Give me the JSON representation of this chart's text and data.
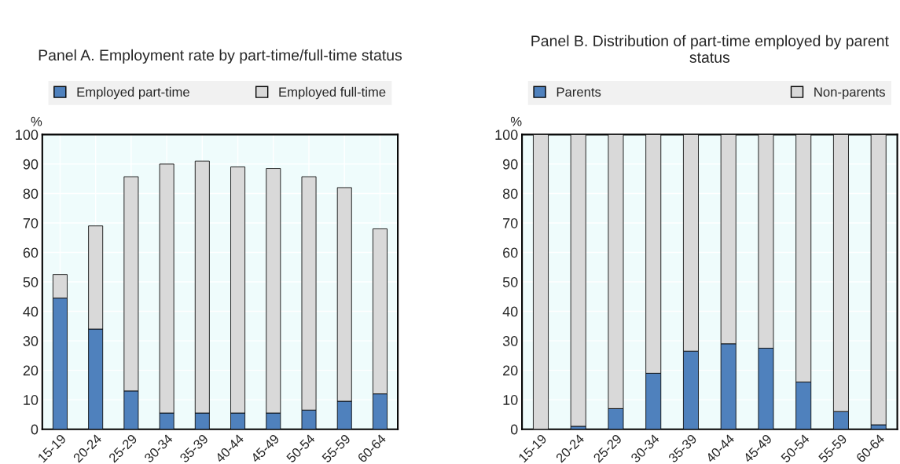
{
  "chart_data": [
    {
      "type": "bar",
      "title": "Panel A. Employment rate by part-time/full-time status",
      "ylabel": "%",
      "categories": [
        "15-19",
        "20-24",
        "25-29",
        "30-34",
        "35-39",
        "40-44",
        "45-49",
        "50-54",
        "55-59",
        "60-64"
      ],
      "stacked": true,
      "series": [
        {
          "name": "Employed part-time",
          "color": "#4f81bd",
          "values": [
            44.5,
            34,
            13,
            5.5,
            5.5,
            5.5,
            5.5,
            6.5,
            9.5,
            12
          ]
        },
        {
          "name": "Employed full-time",
          "color": "#d9d9d9",
          "values": [
            8,
            35,
            72.7,
            84.5,
            85.5,
            83.5,
            83,
            79.2,
            72.5,
            56
          ]
        }
      ],
      "ylim": [
        0,
        100
      ],
      "yticks": [
        0,
        10,
        20,
        30,
        40,
        50,
        60,
        70,
        80,
        90,
        100
      ],
      "grid": true,
      "legend": "top"
    },
    {
      "type": "bar",
      "title": "Panel B. Distribution of part-time employed by parent status",
      "ylabel": "%",
      "categories": [
        "15-19",
        "20-24",
        "25-29",
        "30-34",
        "35-39",
        "40-44",
        "45-49",
        "50-54",
        "55-59",
        "60-64"
      ],
      "stacked": true,
      "series": [
        {
          "name": "Parents",
          "color": "#4f81bd",
          "values": [
            0,
            1,
            7,
            19,
            26.5,
            29,
            27.5,
            16,
            6,
            1.5
          ]
        },
        {
          "name": "Non-parents",
          "color": "#d9d9d9",
          "values": [
            100,
            99,
            93,
            81,
            73.5,
            71,
            72.5,
            84,
            94,
            98.5
          ]
        }
      ],
      "ylim": [
        0,
        100
      ],
      "yticks": [
        0,
        10,
        20,
        30,
        40,
        50,
        60,
        70,
        80,
        90,
        100
      ],
      "grid": true,
      "legend": "top"
    }
  ]
}
